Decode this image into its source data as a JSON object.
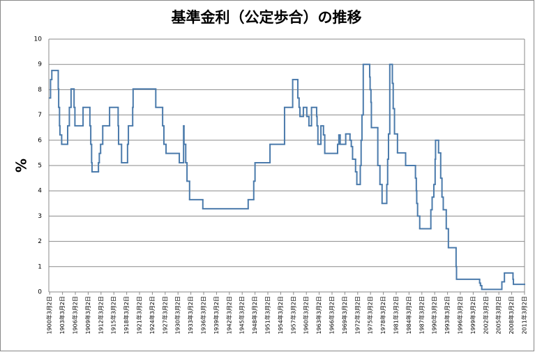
{
  "chart_data": {
    "type": "step-line",
    "title": "基準金利（公定歩合）の推移",
    "y_label": "%",
    "color": "#4a7aab",
    "grid": true,
    "x": [
      1900.2,
      1900.4,
      1900.7,
      1902.2,
      1902.3,
      1902.5,
      1902.6,
      1903.0,
      1904.4,
      1904.8,
      1905.2,
      1905.9,
      1906.1,
      1908.0,
      1909.6,
      1909.8,
      1910.0,
      1910.1,
      1911.6,
      1911.8,
      1912.1,
      1912.6,
      1914.2,
      1916.2,
      1916.3,
      1917.0,
      1918.4,
      1918.6,
      1919.6,
      1919.7,
      1925.0,
      1926.6,
      1926.9,
      1927.4,
      1930.5,
      1931.5,
      1931.6,
      1932.0,
      1932.3,
      1932.9,
      1936.0,
      1946.6,
      1947.9,
      1948.2,
      1951.7,
      1955.1,
      1957.0,
      1958.2,
      1958.5,
      1958.7,
      1959.5,
      1960.3,
      1960.8,
      1961.4,
      1962.6,
      1962.7,
      1962.9,
      1963.6,
      1964.2,
      1964.5,
      1967.5,
      1967.8,
      1968.1,
      1969.4,
      1970.4,
      1970.7,
      1971.0,
      1971.7,
      1972.0,
      1972.8,
      1973.0,
      1973.2,
      1973.5,
      1975.0,
      1975.1,
      1975.3,
      1975.4,
      1976.9,
      1977.4,
      1977.9,
      1979.0,
      1979.2,
      1979.4,
      1979.7,
      1980.3,
      1980.5,
      1980.8,
      1981.5,
      1983.4,
      1985.7,
      1985.9,
      1986.0,
      1986.2,
      1986.7,
      1989.3,
      1989.6,
      1990.0,
      1990.3,
      1990.4,
      1991.1,
      1991.6,
      1991.9,
      1992.2,
      1992.9,
      1993.4,
      1995.2,
      1995.3,
      2000.7,
      2000.9,
      2001.2,
      2005.9,
      2006.5,
      2008.5,
      2008.6
    ],
    "values": [
      7.67,
      8.4,
      8.76,
      8.03,
      7.3,
      6.57,
      6.21,
      5.84,
      6.57,
      7.3,
      8.03,
      7.3,
      6.57,
      7.3,
      6.57,
      5.84,
      5.11,
      4.75,
      5.11,
      5.48,
      5.84,
      6.57,
      7.3,
      6.57,
      5.84,
      5.11,
      5.84,
      6.57,
      7.3,
      8.03,
      7.3,
      6.57,
      5.84,
      5.48,
      5.11,
      6.57,
      5.84,
      5.11,
      4.38,
      3.65,
      3.29,
      3.65,
      4.38,
      5.11,
      5.84,
      7.3,
      8.4,
      7.67,
      7.3,
      6.94,
      7.3,
      6.94,
      6.57,
      7.3,
      6.94,
      6.57,
      5.84,
      6.57,
      6.21,
      5.48,
      5.84,
      6.21,
      5.84,
      6.25,
      6.0,
      5.75,
      5.25,
      4.75,
      4.25,
      5.0,
      6.0,
      7.0,
      9.0,
      8.5,
      8.0,
      7.5,
      6.5,
      5.0,
      4.25,
      3.5,
      4.25,
      5.25,
      6.25,
      9.0,
      8.25,
      7.25,
      6.25,
      5.5,
      5.0,
      4.5,
      4.0,
      3.5,
      3.0,
      2.5,
      3.25,
      3.75,
      4.25,
      5.25,
      6.0,
      5.5,
      4.5,
      3.75,
      3.25,
      2.5,
      1.75,
      1.0,
      0.5,
      0.35,
      0.25,
      0.1,
      0.4,
      0.75,
      0.5,
      0.3
    ],
    "xlim": [
      1900.0,
      2011.2
    ],
    "xticks": [
      {
        "value": 1900.2,
        "label": "1900年3月2日"
      },
      {
        "value": 1903.2,
        "label": "1903年3月2日"
      },
      {
        "value": 1906.2,
        "label": "1906年3月2日"
      },
      {
        "value": 1909.2,
        "label": "1909年3月2日"
      },
      {
        "value": 1912.2,
        "label": "1912年3月2日"
      },
      {
        "value": 1915.2,
        "label": "1915年3月2日"
      },
      {
        "value": 1918.2,
        "label": "1918年3月2日"
      },
      {
        "value": 1921.2,
        "label": "1921年3月2日"
      },
      {
        "value": 1924.2,
        "label": "1924年3月2日"
      },
      {
        "value": 1927.2,
        "label": "1927年3月2日"
      },
      {
        "value": 1930.2,
        "label": "1930年3月2日"
      },
      {
        "value": 1933.2,
        "label": "1933年3月2日"
      },
      {
        "value": 1936.2,
        "label": "1936年3月2日"
      },
      {
        "value": 1939.2,
        "label": "1939年3月2日"
      },
      {
        "value": 1942.2,
        "label": "1942年3月2日"
      },
      {
        "value": 1945.2,
        "label": "1945年3月2日"
      },
      {
        "value": 1948.2,
        "label": "1948年3月2日"
      },
      {
        "value": 1951.2,
        "label": "1951年3月2日"
      },
      {
        "value": 1954.2,
        "label": "1954年3月2日"
      },
      {
        "value": 1957.2,
        "label": "1957年3月2日"
      },
      {
        "value": 1960.2,
        "label": "1960年3月2日"
      },
      {
        "value": 1963.2,
        "label": "1963年3月2日"
      },
      {
        "value": 1966.2,
        "label": "1966年3月2日"
      },
      {
        "value": 1969.2,
        "label": "1969年3月2日"
      },
      {
        "value": 1972.2,
        "label": "1972年3月2日"
      },
      {
        "value": 1975.2,
        "label": "1975年3月2日"
      },
      {
        "value": 1978.2,
        "label": "1978年3月2日"
      },
      {
        "value": 1981.2,
        "label": "1981年3月2日"
      },
      {
        "value": 1984.2,
        "label": "1984年3月2日"
      },
      {
        "value": 1987.2,
        "label": "1987年3月2日"
      },
      {
        "value": 1990.2,
        "label": "1990年3月2日"
      },
      {
        "value": 1993.2,
        "label": "1993年3月2日"
      },
      {
        "value": 1996.2,
        "label": "1996年3月2日"
      },
      {
        "value": 1999.2,
        "label": "1999年3月2日"
      },
      {
        "value": 2002.2,
        "label": "2002年3月2日"
      },
      {
        "value": 2005.2,
        "label": "2005年3月2日"
      },
      {
        "value": 2008.2,
        "label": "2008年3月2日"
      },
      {
        "value": 2011.2,
        "label": "2011年3月2日"
      }
    ],
    "ylim": [
      0,
      10
    ],
    "yticks": [
      0,
      1,
      2,
      3,
      4,
      5,
      6,
      7,
      8,
      9,
      10
    ]
  }
}
